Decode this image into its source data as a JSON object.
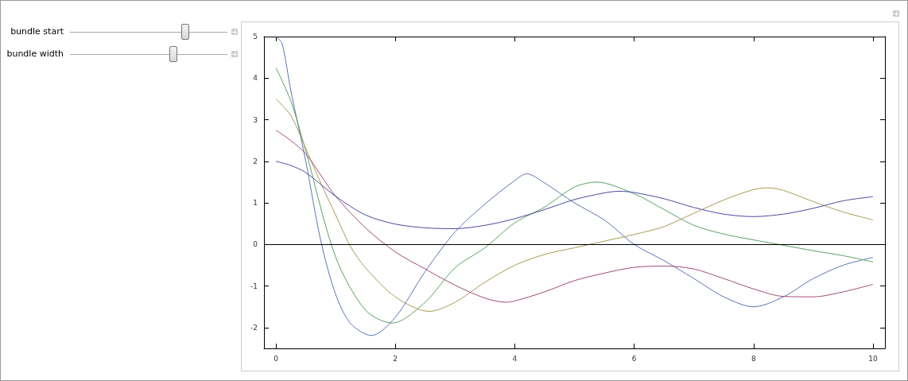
{
  "chart_data": {
    "type": "line",
    "xlim": [
      -0.2,
      10.2
    ],
    "xticks": [
      0,
      2,
      4,
      6,
      8,
      10
    ],
    "ylim": [
      -2.5,
      5
    ],
    "yticks": [
      -2,
      -1,
      0,
      1,
      2,
      3,
      4,
      5
    ],
    "grid": false,
    "marker": "none",
    "line_style": "solid",
    "ref_lines": [
      {
        "axis": "y",
        "value": 0,
        "color": "#000000"
      }
    ],
    "annotations": [
      "bundle start",
      "bundle width"
    ],
    "series": [
      {
        "color": "#5b73b8",
        "x": [
          0,
          0.1,
          0.25,
          0.5,
          0.75,
          1,
          1.25,
          1.6,
          2,
          2.5,
          3,
          3.5,
          4,
          4.2,
          4.5,
          5,
          5.5,
          6,
          6.5,
          7,
          7.5,
          8,
          8.5,
          9,
          9.5,
          10
        ],
        "values": [
          5,
          4.85,
          3.7,
          2.0,
          0.1,
          -1.2,
          -1.9,
          -2.19,
          -1.75,
          -0.65,
          0.3,
          0.97,
          1.54,
          1.7,
          1.48,
          1.0,
          0.59,
          0,
          -0.39,
          -0.82,
          -1.26,
          -1.5,
          -1.26,
          -0.82,
          -0.5,
          -0.31
        ]
      },
      {
        "color": "#5aa163",
        "x": [
          0,
          0.25,
          0.5,
          1,
          1.5,
          1.95,
          2.5,
          3,
          3.5,
          4,
          4.5,
          5,
          5.37,
          6,
          6.5,
          7,
          7.5,
          8,
          8.5,
          9,
          9.5,
          10
        ],
        "values": [
          4.25,
          3.45,
          2.25,
          -0.3,
          -1.58,
          -1.89,
          -1.39,
          -0.56,
          -0.08,
          0.52,
          0.9,
          1.38,
          1.5,
          1.22,
          0.84,
          0.46,
          0.25,
          0.11,
          -0.02,
          -0.15,
          -0.27,
          -0.42
        ]
      },
      {
        "color": "#a99a51",
        "x": [
          0,
          0.25,
          0.5,
          0.75,
          1,
          1.25,
          1.5,
          2,
          2.57,
          3,
          3.5,
          4,
          4.5,
          5,
          5.5,
          6,
          6.5,
          7,
          7.5,
          8,
          8.25,
          8.5,
          9,
          9.5,
          10
        ],
        "values": [
          3.5,
          3.1,
          2.31,
          1.48,
          0.71,
          -0.05,
          -0.56,
          -1.26,
          -1.61,
          -1.39,
          -0.91,
          -0.5,
          -0.24,
          -0.08,
          0.08,
          0.24,
          0.43,
          0.75,
          1.07,
          1.32,
          1.36,
          1.3,
          1.03,
          0.78,
          0.59
        ]
      },
      {
        "color": "#a34a7a",
        "x": [
          0,
          0.25,
          0.5,
          0.75,
          1,
          1.5,
          2,
          2.5,
          3,
          3.5,
          3.85,
          4,
          4.5,
          5,
          5.5,
          6,
          6.5,
          7,
          7.5,
          8,
          8.5,
          9,
          9.5,
          10
        ],
        "values": [
          2.75,
          2.5,
          2.18,
          1.67,
          1.16,
          0.4,
          -0.18,
          -0.59,
          -0.98,
          -1.29,
          -1.39,
          -1.36,
          -1.14,
          -0.87,
          -0.69,
          -0.55,
          -0.52,
          -0.59,
          -0.82,
          -1.07,
          -1.25,
          -1.26,
          -1.14,
          -0.96
        ]
      },
      {
        "color": "#4a4aa0",
        "x": [
          0,
          0.25,
          0.5,
          1,
          1.5,
          2,
          2.5,
          3,
          3.5,
          4,
          4.5,
          5,
          5.5,
          5.75,
          6,
          6.5,
          7,
          7.5,
          8,
          8.5,
          9,
          9.5,
          10
        ],
        "values": [
          2.0,
          1.9,
          1.73,
          1.16,
          0.71,
          0.49,
          0.4,
          0.38,
          0.46,
          0.62,
          0.84,
          1.08,
          1.24,
          1.28,
          1.25,
          1.1,
          0.89,
          0.73,
          0.67,
          0.73,
          0.87,
          1.05,
          1.15
        ]
      }
    ]
  }
}
